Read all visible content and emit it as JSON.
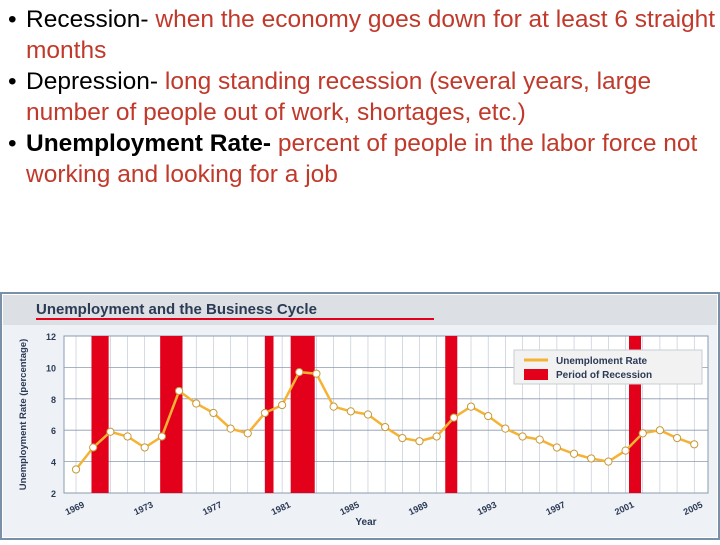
{
  "bullets": [
    {
      "term": "Recession-",
      "definition": " when the economy goes down for at least 6 straight months",
      "bold": false
    },
    {
      "term": "Depression-",
      "definition": " long standing recession (several years, large number of people out of work, shortages, etc.)",
      "bold": false
    },
    {
      "term": "Unemployment Rate-",
      "definition": " percent of people in the labor force not working and looking for a job",
      "bold": true
    }
  ],
  "bullet_glyph": "•",
  "colors": {
    "definition": "#c0392b",
    "header_bg": "#dcdfe3",
    "frame": "#7a8fa8",
    "line": "#f5b335",
    "recession": "#e2001a",
    "plot_bg": "#ffffff",
    "grid": "#b9c3d0"
  },
  "chart_data": {
    "type": "line",
    "title": "Unemployment and the Business Cycle",
    "xlabel": "Year",
    "ylabel": "Unemployment Rate (percentage)",
    "xlim": [
      1968.3,
      2005.8
    ],
    "ylim": [
      2,
      12
    ],
    "yticks": [
      2,
      4,
      6,
      8,
      10,
      12
    ],
    "xticks": [
      1969,
      1973,
      1977,
      1981,
      1985,
      1989,
      1993,
      1997,
      2001,
      2005
    ],
    "grid": true,
    "legend_position": "top-right",
    "legend": {
      "line_label": "Unemploment Rate",
      "recession_label": "Period of Recession"
    },
    "series": [
      {
        "x": [
          1969,
          1970,
          1971,
          1972,
          1973,
          1974,
          1975,
          1976,
          1977,
          1978,
          1979,
          1980,
          1981,
          1982,
          1983,
          1984,
          1985,
          1986,
          1987,
          1988,
          1989,
          1990,
          1991,
          1992,
          1993,
          1994,
          1995,
          1996,
          1997,
          1998,
          1999,
          2000,
          2001,
          2002,
          2003,
          2004,
          2005
        ],
        "values": [
          3.5,
          4.9,
          5.9,
          5.6,
          4.9,
          5.6,
          8.5,
          7.7,
          7.1,
          6.1,
          5.8,
          7.1,
          7.6,
          9.7,
          9.6,
          7.5,
          7.2,
          7.0,
          6.2,
          5.5,
          5.3,
          5.6,
          6.8,
          7.5,
          6.9,
          6.1,
          5.6,
          5.4,
          4.9,
          4.5,
          4.2,
          4.0,
          4.7,
          5.8,
          6.0,
          5.5,
          5.1
        ]
      }
    ],
    "recessions": [
      [
        1969.9,
        1970.9
      ],
      [
        1973.9,
        1975.2
      ],
      [
        1980.0,
        1980.5
      ],
      [
        1981.5,
        1982.9
      ],
      [
        1990.5,
        1991.2
      ],
      [
        2001.2,
        2001.9
      ]
    ]
  }
}
